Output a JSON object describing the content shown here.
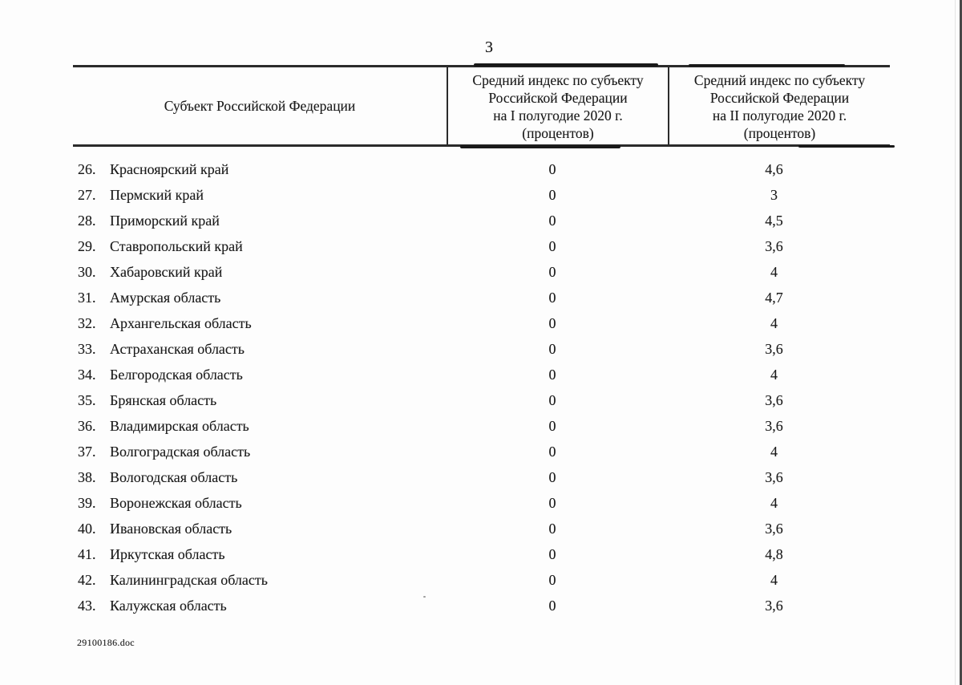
{
  "page": {
    "number": "3",
    "footer_filename": "29100186.doc"
  },
  "table": {
    "col1_header": "Субъект Российской Федерации",
    "col2_header_lines": [
      "Средний индекс по субъекту",
      "Российской Федерации",
      "на I полугодие 2020 г.",
      "(процентов)"
    ],
    "col3_header_lines": [
      "Средний индекс по субъекту",
      "Российской Федерации",
      "на II полугодие 2020 г.",
      "(процентов)"
    ],
    "rows": [
      {
        "num": "26.",
        "name": "Красноярский край",
        "h1": "0",
        "h2": "4,6"
      },
      {
        "num": "27.",
        "name": "Пермский край",
        "h1": "0",
        "h2": "3"
      },
      {
        "num": "28.",
        "name": "Приморский край",
        "h1": "0",
        "h2": "4,5"
      },
      {
        "num": "29.",
        "name": "Ставропольский край",
        "h1": "0",
        "h2": "3,6"
      },
      {
        "num": "30.",
        "name": "Хабаровский край",
        "h1": "0",
        "h2": "4"
      },
      {
        "num": "31.",
        "name": "Амурская область",
        "h1": "0",
        "h2": "4,7"
      },
      {
        "num": "32.",
        "name": "Архангельская область",
        "h1": "0",
        "h2": "4"
      },
      {
        "num": "33.",
        "name": "Астраханская область",
        "h1": "0",
        "h2": "3,6"
      },
      {
        "num": "34.",
        "name": "Белгородская область",
        "h1": "0",
        "h2": "4"
      },
      {
        "num": "35.",
        "name": "Брянская область",
        "h1": "0",
        "h2": "3,6"
      },
      {
        "num": "36.",
        "name": "Владимирская область",
        "h1": "0",
        "h2": "3,6"
      },
      {
        "num": "37.",
        "name": "Волгоградская область",
        "h1": "0",
        "h2": "4"
      },
      {
        "num": "38.",
        "name": "Вологодская область",
        "h1": "0",
        "h2": "3,6"
      },
      {
        "num": "39.",
        "name": "Воронежская область",
        "h1": "0",
        "h2": "4"
      },
      {
        "num": "40.",
        "name": "Ивановская область",
        "h1": "0",
        "h2": "3,6"
      },
      {
        "num": "41.",
        "name": "Иркутская область",
        "h1": "0",
        "h2": "4,8"
      },
      {
        "num": "42.",
        "name": "Калининградская область",
        "h1": "0",
        "h2": "4"
      },
      {
        "num": "43.",
        "name": "Калужская область",
        "h1": "0",
        "h2": "3,6"
      }
    ]
  }
}
